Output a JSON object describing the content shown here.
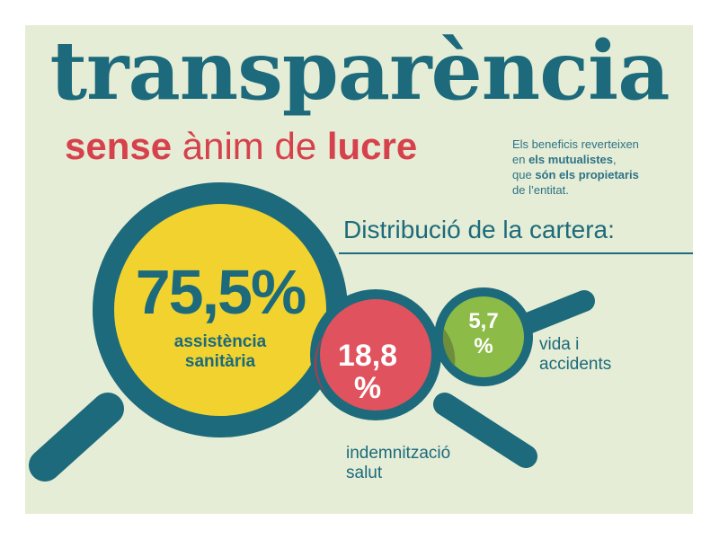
{
  "header": {
    "title": "transparència",
    "subtitle_part1": "sense",
    "subtitle_part2": " ànim de ",
    "subtitle_part3": "lucre"
  },
  "note": {
    "line1": "Els beneficis reverteixen",
    "line2_prefix": "en ",
    "line2_bold": "els mutualistes",
    "line2_suffix": ",",
    "line3_prefix": "que ",
    "line3_bold": "són els propietaris",
    "line4": "de l’entitat."
  },
  "distribution": {
    "title": "Distribució de la cartera:",
    "items": [
      {
        "value_text": "75,5%",
        "value": 75.5,
        "label_line1": "assistència",
        "label_line2": "sanitària",
        "color": "#f1d22f"
      },
      {
        "value_text_1": "18,8",
        "value_text_2": "%",
        "value": 18.8,
        "label_line1": "indemnització",
        "label_line2": "salut",
        "color": "#e0525e"
      },
      {
        "value_text_1": "5,7",
        "value_text_2": "%",
        "value": 5.7,
        "label_line1": "vida i",
        "label_line2": "accidents",
        "color": "#8dbb48"
      }
    ]
  },
  "colors": {
    "background": "#e6edd6",
    "primary": "#1c6a7b",
    "accent": "#d6414c",
    "note": "#2d7287"
  }
}
